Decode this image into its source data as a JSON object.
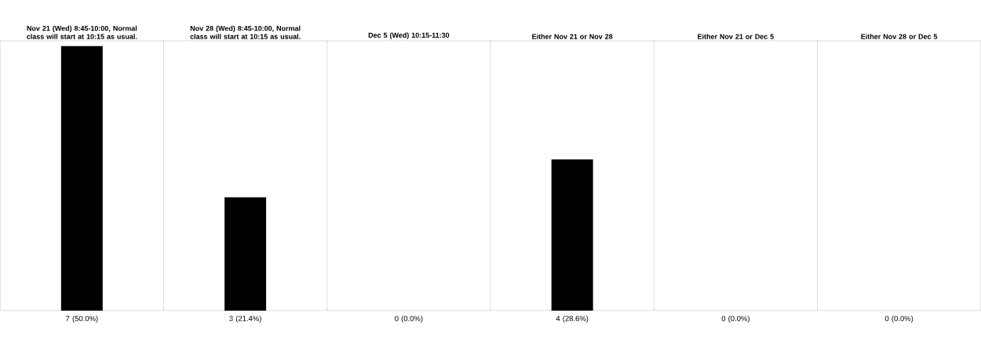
{
  "chart_data": {
    "type": "bar",
    "categories": [
      "Nov 21 (Wed) 8:45-10:00, Normal class will start at 10:15 as usual.",
      "Nov 28 (Wed) 8:45-10:00, Normal class will start at 10:15 as usual.",
      "Dec 5 (Wed) 10:15-11:30",
      "Either Nov 21 or Nov 28",
      "Either Nov 21 or Dec 5",
      "Either Nov 28 or Dec 5"
    ],
    "values": [
      7,
      3,
      0,
      4,
      0,
      0
    ],
    "value_labels": [
      "7 (50.0%)",
      "3 (21.4%)",
      "0 (0.0%)",
      "4 (28.6%)",
      "0 (0.0%)",
      "0 (0.0%)"
    ],
    "color": "#000000"
  }
}
